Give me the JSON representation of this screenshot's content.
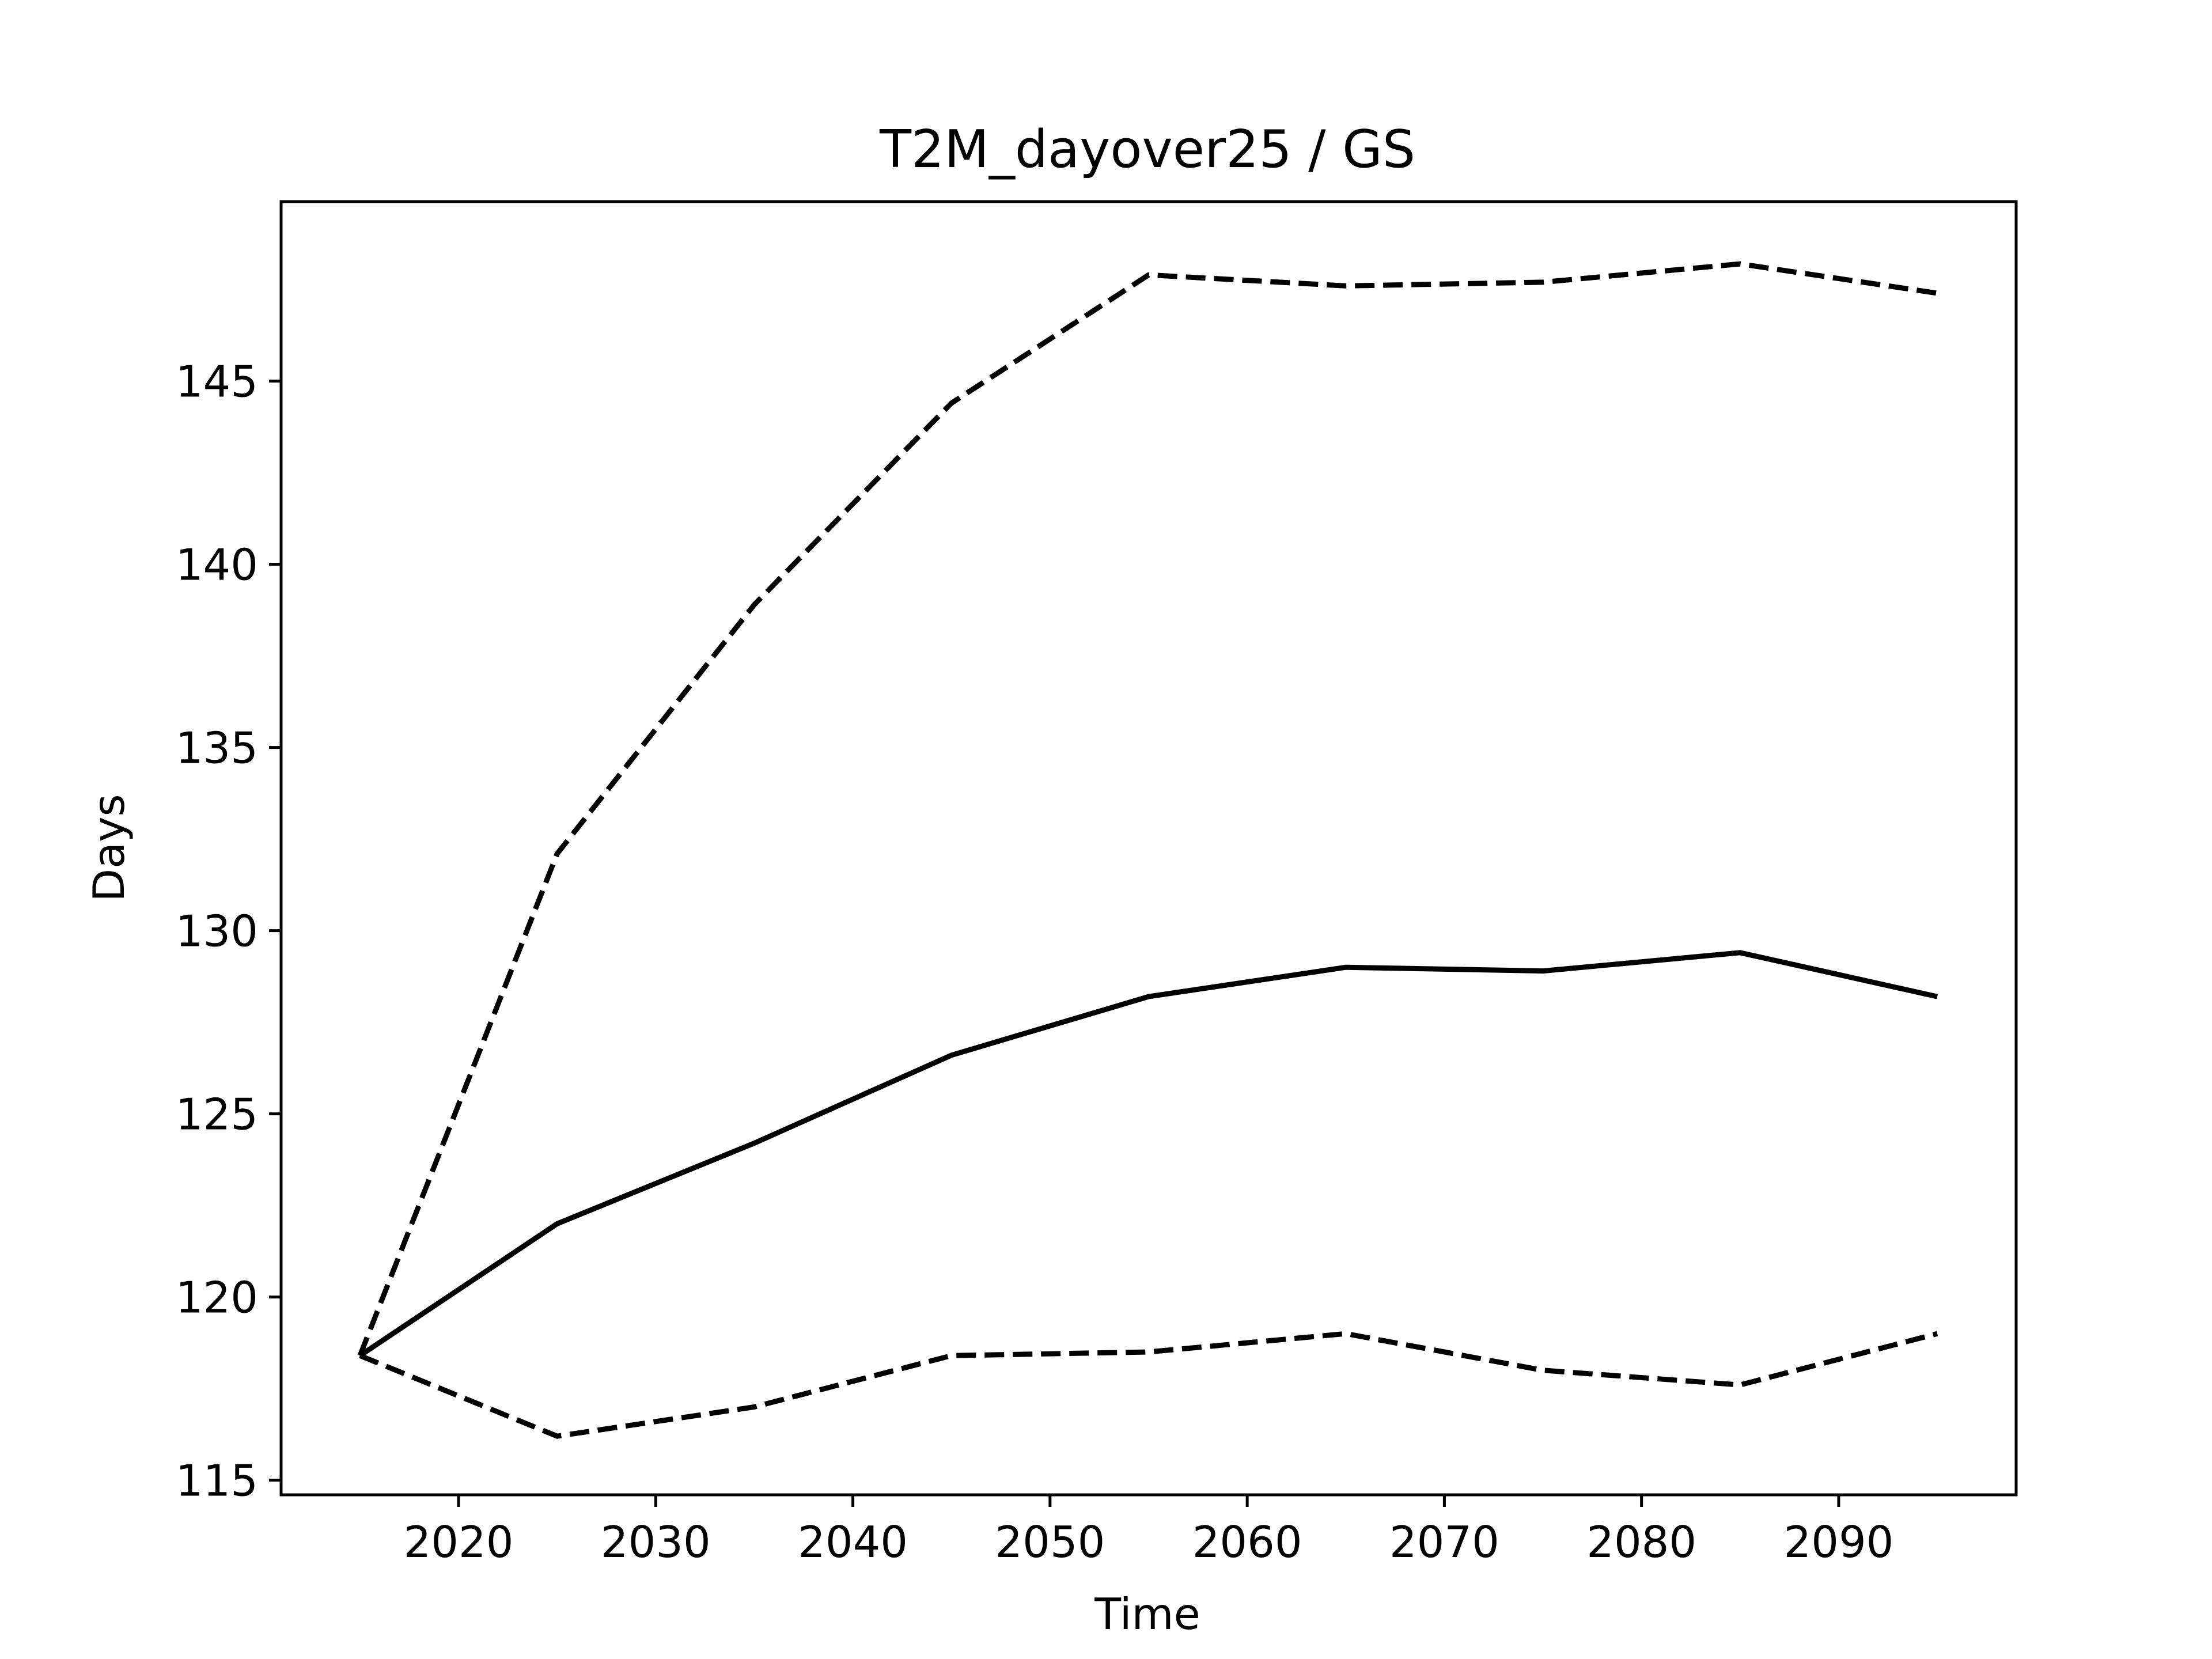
{
  "chart_data": {
    "type": "line",
    "title": "T2M_dayover25 / GS",
    "xlabel": "Time",
    "ylabel": "Days",
    "x": [
      2015,
      2025,
      2035,
      2045,
      2055,
      2065,
      2075,
      2085,
      2095
    ],
    "xlim": [
      2011,
      2099
    ],
    "ylim": [
      114.6,
      149.9
    ],
    "xticks": [
      2020,
      2030,
      2040,
      2050,
      2060,
      2070,
      2080,
      2090
    ],
    "yticks": [
      115,
      120,
      125,
      130,
      135,
      140,
      145
    ],
    "grid": false,
    "series": [
      {
        "style": "dashed",
        "color": "#000000",
        "values": [
          118.4,
          132.1,
          138.9,
          144.4,
          147.9,
          147.6,
          147.7,
          148.2,
          147.4
        ]
      },
      {
        "style": "solid",
        "color": "#000000",
        "values": [
          118.4,
          122.0,
          124.2,
          126.6,
          128.2,
          129.0,
          128.9,
          129.4,
          128.2
        ]
      },
      {
        "style": "dashed",
        "color": "#000000",
        "values": [
          118.4,
          116.2,
          117.0,
          118.4,
          118.5,
          119.0,
          118.0,
          117.6,
          119.0
        ]
      }
    ]
  }
}
